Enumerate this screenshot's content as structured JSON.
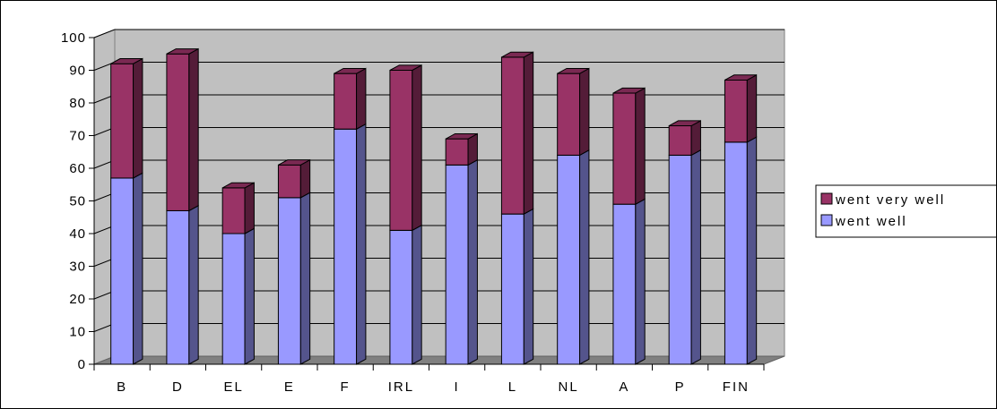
{
  "chart_data": {
    "type": "bar",
    "stacked": true,
    "three_d": true,
    "categories": [
      "B",
      "D",
      "EL",
      "E",
      "F",
      "IRL",
      "I",
      "L",
      "NL",
      "A",
      "P",
      "FIN"
    ],
    "series": [
      {
        "name": "went well",
        "color": "#9999ff",
        "values": [
          57,
          47,
          40,
          51,
          72,
          41,
          61,
          46,
          64,
          49,
          64,
          68
        ]
      },
      {
        "name": "went very well",
        "color": "#993366",
        "values": [
          35,
          48,
          14,
          10,
          17,
          49,
          8,
          48,
          25,
          34,
          9,
          19
        ]
      }
    ],
    "ylim": [
      0,
      100
    ],
    "yticks": [
      0,
      10,
      20,
      30,
      40,
      50,
      60,
      70,
      80,
      90,
      100
    ],
    "grid": true,
    "legend_position": "right",
    "wall_color": "#c0c0c0",
    "floor_color": "#808080",
    "title": "",
    "xlabel": "",
    "ylabel": ""
  }
}
